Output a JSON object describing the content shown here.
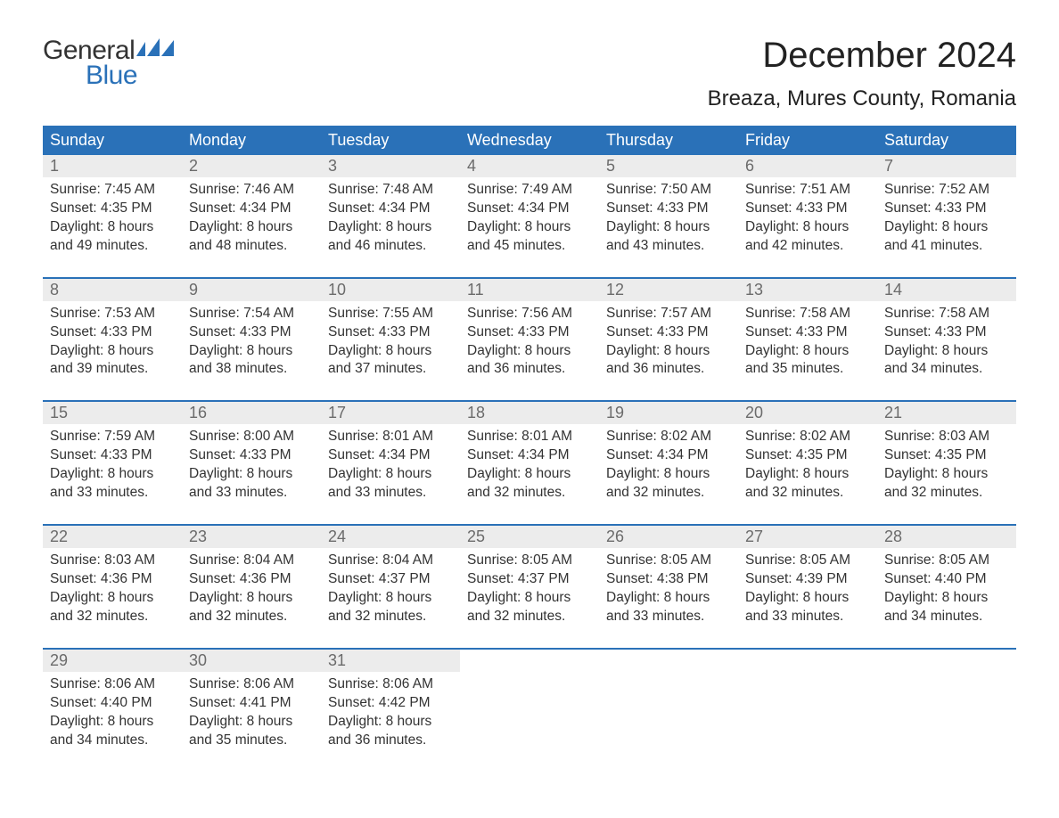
{
  "brand": {
    "word1": "General",
    "word2": "Blue",
    "flag_color": "#2a71b8",
    "text_color": "#333333"
  },
  "header": {
    "month_year": "December 2024",
    "location": "Breaza, Mures County, Romania"
  },
  "colors": {
    "header_bg": "#2a71b8",
    "header_fg": "#ffffff",
    "daynum_bg": "#ececec",
    "daynum_fg": "#6b6b6b",
    "body_fg": "#333333",
    "page_bg": "#ffffff",
    "week_border": "#2a71b8"
  },
  "fonts": {
    "title_size_pt": 30,
    "location_size_pt": 18,
    "dow_size_pt": 14,
    "body_size_pt": 12
  },
  "days_of_week": [
    "Sunday",
    "Monday",
    "Tuesday",
    "Wednesday",
    "Thursday",
    "Friday",
    "Saturday"
  ],
  "weeks": [
    [
      {
        "n": "1",
        "sr": "Sunrise: 7:45 AM",
        "ss": "Sunset: 4:35 PM",
        "d1": "Daylight: 8 hours",
        "d2": "and 49 minutes."
      },
      {
        "n": "2",
        "sr": "Sunrise: 7:46 AM",
        "ss": "Sunset: 4:34 PM",
        "d1": "Daylight: 8 hours",
        "d2": "and 48 minutes."
      },
      {
        "n": "3",
        "sr": "Sunrise: 7:48 AM",
        "ss": "Sunset: 4:34 PM",
        "d1": "Daylight: 8 hours",
        "d2": "and 46 minutes."
      },
      {
        "n": "4",
        "sr": "Sunrise: 7:49 AM",
        "ss": "Sunset: 4:34 PM",
        "d1": "Daylight: 8 hours",
        "d2": "and 45 minutes."
      },
      {
        "n": "5",
        "sr": "Sunrise: 7:50 AM",
        "ss": "Sunset: 4:33 PM",
        "d1": "Daylight: 8 hours",
        "d2": "and 43 minutes."
      },
      {
        "n": "6",
        "sr": "Sunrise: 7:51 AM",
        "ss": "Sunset: 4:33 PM",
        "d1": "Daylight: 8 hours",
        "d2": "and 42 minutes."
      },
      {
        "n": "7",
        "sr": "Sunrise: 7:52 AM",
        "ss": "Sunset: 4:33 PM",
        "d1": "Daylight: 8 hours",
        "d2": "and 41 minutes."
      }
    ],
    [
      {
        "n": "8",
        "sr": "Sunrise: 7:53 AM",
        "ss": "Sunset: 4:33 PM",
        "d1": "Daylight: 8 hours",
        "d2": "and 39 minutes."
      },
      {
        "n": "9",
        "sr": "Sunrise: 7:54 AM",
        "ss": "Sunset: 4:33 PM",
        "d1": "Daylight: 8 hours",
        "d2": "and 38 minutes."
      },
      {
        "n": "10",
        "sr": "Sunrise: 7:55 AM",
        "ss": "Sunset: 4:33 PM",
        "d1": "Daylight: 8 hours",
        "d2": "and 37 minutes."
      },
      {
        "n": "11",
        "sr": "Sunrise: 7:56 AM",
        "ss": "Sunset: 4:33 PM",
        "d1": "Daylight: 8 hours",
        "d2": "and 36 minutes."
      },
      {
        "n": "12",
        "sr": "Sunrise: 7:57 AM",
        "ss": "Sunset: 4:33 PM",
        "d1": "Daylight: 8 hours",
        "d2": "and 36 minutes."
      },
      {
        "n": "13",
        "sr": "Sunrise: 7:58 AM",
        "ss": "Sunset: 4:33 PM",
        "d1": "Daylight: 8 hours",
        "d2": "and 35 minutes."
      },
      {
        "n": "14",
        "sr": "Sunrise: 7:58 AM",
        "ss": "Sunset: 4:33 PM",
        "d1": "Daylight: 8 hours",
        "d2": "and 34 minutes."
      }
    ],
    [
      {
        "n": "15",
        "sr": "Sunrise: 7:59 AM",
        "ss": "Sunset: 4:33 PM",
        "d1": "Daylight: 8 hours",
        "d2": "and 33 minutes."
      },
      {
        "n": "16",
        "sr": "Sunrise: 8:00 AM",
        "ss": "Sunset: 4:33 PM",
        "d1": "Daylight: 8 hours",
        "d2": "and 33 minutes."
      },
      {
        "n": "17",
        "sr": "Sunrise: 8:01 AM",
        "ss": "Sunset: 4:34 PM",
        "d1": "Daylight: 8 hours",
        "d2": "and 33 minutes."
      },
      {
        "n": "18",
        "sr": "Sunrise: 8:01 AM",
        "ss": "Sunset: 4:34 PM",
        "d1": "Daylight: 8 hours",
        "d2": "and 32 minutes."
      },
      {
        "n": "19",
        "sr": "Sunrise: 8:02 AM",
        "ss": "Sunset: 4:34 PM",
        "d1": "Daylight: 8 hours",
        "d2": "and 32 minutes."
      },
      {
        "n": "20",
        "sr": "Sunrise: 8:02 AM",
        "ss": "Sunset: 4:35 PM",
        "d1": "Daylight: 8 hours",
        "d2": "and 32 minutes."
      },
      {
        "n": "21",
        "sr": "Sunrise: 8:03 AM",
        "ss": "Sunset: 4:35 PM",
        "d1": "Daylight: 8 hours",
        "d2": "and 32 minutes."
      }
    ],
    [
      {
        "n": "22",
        "sr": "Sunrise: 8:03 AM",
        "ss": "Sunset: 4:36 PM",
        "d1": "Daylight: 8 hours",
        "d2": "and 32 minutes."
      },
      {
        "n": "23",
        "sr": "Sunrise: 8:04 AM",
        "ss": "Sunset: 4:36 PM",
        "d1": "Daylight: 8 hours",
        "d2": "and 32 minutes."
      },
      {
        "n": "24",
        "sr": "Sunrise: 8:04 AM",
        "ss": "Sunset: 4:37 PM",
        "d1": "Daylight: 8 hours",
        "d2": "and 32 minutes."
      },
      {
        "n": "25",
        "sr": "Sunrise: 8:05 AM",
        "ss": "Sunset: 4:37 PM",
        "d1": "Daylight: 8 hours",
        "d2": "and 32 minutes."
      },
      {
        "n": "26",
        "sr": "Sunrise: 8:05 AM",
        "ss": "Sunset: 4:38 PM",
        "d1": "Daylight: 8 hours",
        "d2": "and 33 minutes."
      },
      {
        "n": "27",
        "sr": "Sunrise: 8:05 AM",
        "ss": "Sunset: 4:39 PM",
        "d1": "Daylight: 8 hours",
        "d2": "and 33 minutes."
      },
      {
        "n": "28",
        "sr": "Sunrise: 8:05 AM",
        "ss": "Sunset: 4:40 PM",
        "d1": "Daylight: 8 hours",
        "d2": "and 34 minutes."
      }
    ],
    [
      {
        "n": "29",
        "sr": "Sunrise: 8:06 AM",
        "ss": "Sunset: 4:40 PM",
        "d1": "Daylight: 8 hours",
        "d2": "and 34 minutes."
      },
      {
        "n": "30",
        "sr": "Sunrise: 8:06 AM",
        "ss": "Sunset: 4:41 PM",
        "d1": "Daylight: 8 hours",
        "d2": "and 35 minutes."
      },
      {
        "n": "31",
        "sr": "Sunrise: 8:06 AM",
        "ss": "Sunset: 4:42 PM",
        "d1": "Daylight: 8 hours",
        "d2": "and 36 minutes."
      },
      null,
      null,
      null,
      null
    ]
  ]
}
